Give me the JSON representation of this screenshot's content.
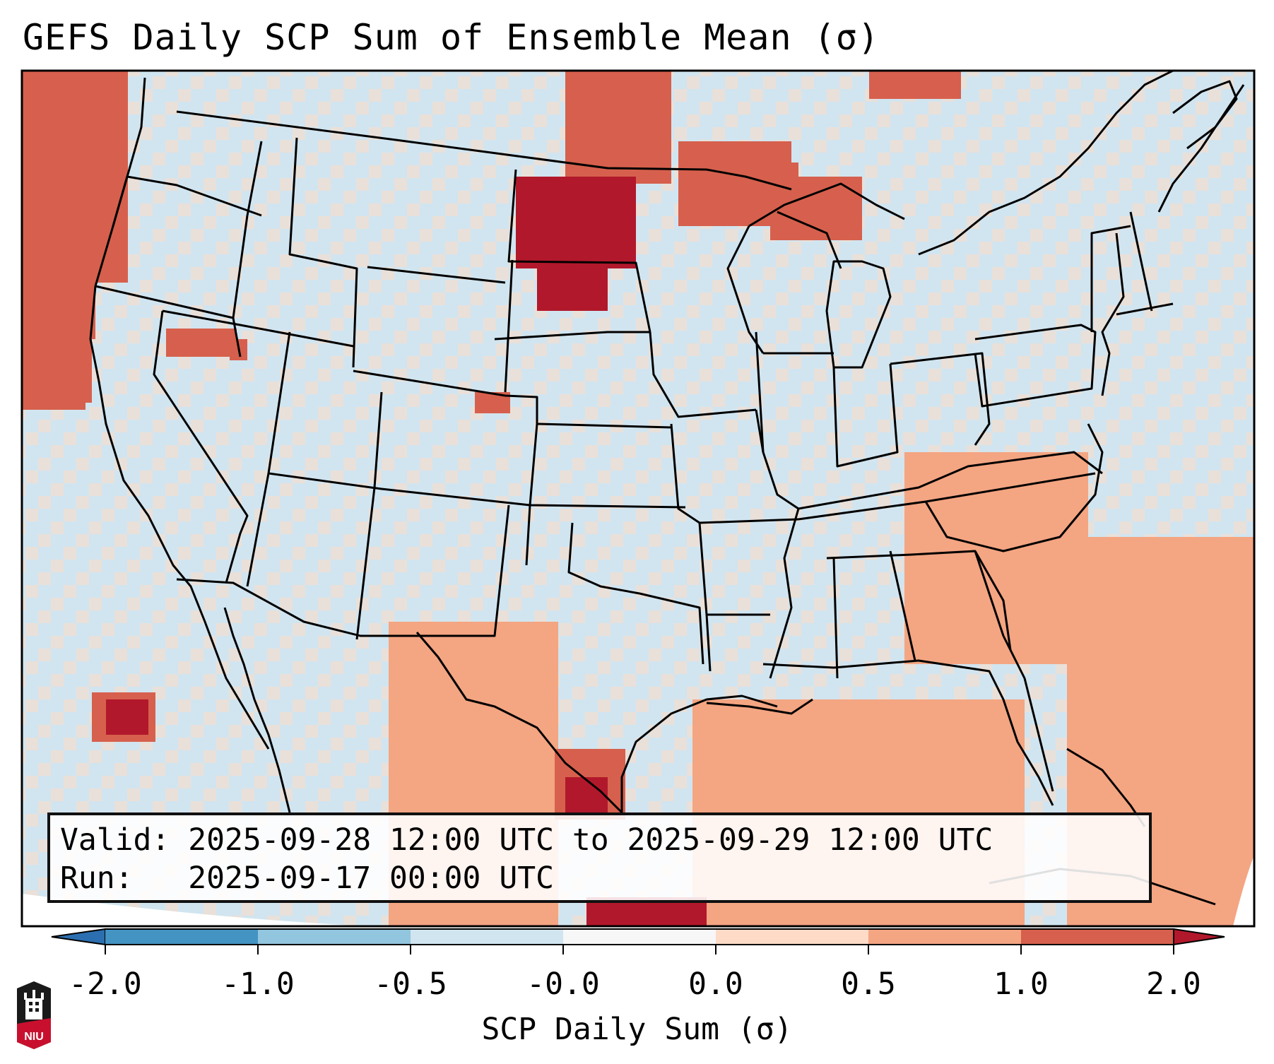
{
  "title": "GEFS Daily SCP Sum of Ensemble Mean (σ)",
  "info": {
    "valid_line": "Valid: 2025-09-28 12:00 UTC to 2025-09-29 12:00 UTC",
    "run_line": "Run:   2025-09-17 00:00 UTC"
  },
  "colorbar": {
    "label": "SCP Daily Sum (σ)",
    "ticks": [
      "-2.0",
      "-1.0",
      "-0.5",
      "-0.0",
      "0.0",
      "0.5",
      "1.0",
      "2.0"
    ],
    "colors": [
      "#2c6fb0",
      "#4393c3",
      "#92c5de",
      "#d1e5f0",
      "#f7f7f7",
      "#fddbc7",
      "#f4a582",
      "#d6604d",
      "#b2182b"
    ],
    "extend": "both"
  },
  "map": {
    "region": "CONUS",
    "background_color": "#d1e5f0",
    "outline_color": "#000000",
    "anomaly_regions": [
      {
        "name": "pacific-northwest-coast",
        "level": 1.0
      },
      {
        "name": "northern-california-coast",
        "level": 1.0
      },
      {
        "name": "northern-plains",
        "level": 2.0
      },
      {
        "name": "upper-midwest",
        "level": 1.0
      },
      {
        "name": "lake-superior",
        "level": 1.0
      },
      {
        "name": "south-texas",
        "level": 2.0
      },
      {
        "name": "pacific-baja",
        "level": 2.0
      },
      {
        "name": "great-basin",
        "level": 1.0
      },
      {
        "name": "colorado-front-range",
        "level": 1.0
      },
      {
        "name": "western-atlantic",
        "level": 0.5
      },
      {
        "name": "gulf-of-mexico",
        "level": 0.5
      }
    ]
  },
  "logo": {
    "text": "NIU",
    "colors": {
      "top": "#1a1a1a",
      "bottom": "#c8102e"
    }
  }
}
